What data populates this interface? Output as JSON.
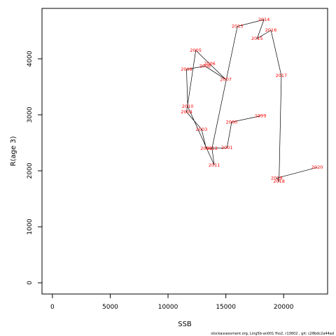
{
  "chart_data": {
    "type": "line",
    "xlabel": "SSB",
    "ylabel": "R(age 3)",
    "xlim": [
      -900,
      23800
    ],
    "ylim": [
      -200,
      4900
    ],
    "xticks": [
      0,
      5000,
      10000,
      15000,
      20000
    ],
    "yticks": [
      0,
      1000,
      2000,
      3000,
      4000
    ],
    "line_color": "#000000",
    "label_color": "#ff0000",
    "points": [
      {
        "year": "1999",
        "x": 18000,
        "y": 2980
      },
      {
        "year": "2000",
        "x": 15500,
        "y": 2870
      },
      {
        "year": "2001",
        "x": 15100,
        "y": 2410
      },
      {
        "year": "2002",
        "x": 13300,
        "y": 2400
      },
      {
        "year": "2003",
        "x": 12900,
        "y": 2740
      },
      {
        "year": "2004",
        "x": 11600,
        "y": 3050
      },
      {
        "year": "2005",
        "x": 12400,
        "y": 4150
      },
      {
        "year": "2006",
        "x": 13600,
        "y": 3910
      },
      {
        "year": "2007",
        "x": 15000,
        "y": 3630
      },
      {
        "year": "2008",
        "x": 13200,
        "y": 3870
      },
      {
        "year": "2009",
        "x": 11600,
        "y": 3810
      },
      {
        "year": "2010",
        "x": 11700,
        "y": 3150
      },
      {
        "year": "2011",
        "x": 14000,
        "y": 2100
      },
      {
        "year": "2012",
        "x": 13800,
        "y": 2400
      },
      {
        "year": "2013",
        "x": 16000,
        "y": 4580
      },
      {
        "year": "2014",
        "x": 18300,
        "y": 4700
      },
      {
        "year": "2015",
        "x": 17700,
        "y": 4360
      },
      {
        "year": "2016",
        "x": 18900,
        "y": 4510
      },
      {
        "year": "2017",
        "x": 19800,
        "y": 3700
      },
      {
        "year": "2018",
        "x": 19600,
        "y": 1810
      },
      {
        "year": "2019",
        "x": 19400,
        "y": 1870
      },
      {
        "year": "2020",
        "x": 22900,
        "y": 2060
      }
    ]
  },
  "footer": "stockassessment.org,  Ling5b-an001  fho2,  r13602 ,  git:  c28bdc2a44ad"
}
